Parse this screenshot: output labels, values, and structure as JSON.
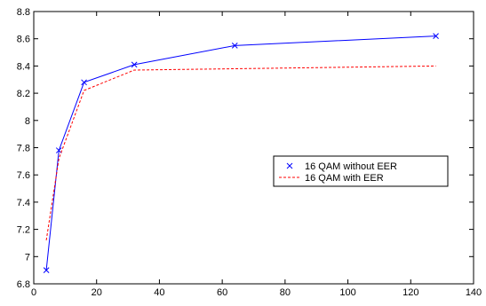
{
  "chart_data": {
    "type": "line",
    "title": "",
    "xlabel": "",
    "ylabel": "",
    "xlim": [
      0,
      140
    ],
    "ylim": [
      6.8,
      8.8
    ],
    "x_ticks": [
      "0",
      "20",
      "40",
      "60",
      "80",
      "100",
      "120",
      "140"
    ],
    "y_ticks": [
      "6.8",
      "7",
      "7.2",
      "7.4",
      "7.6",
      "7.8",
      "8",
      "8.2",
      "8.4",
      "8.6",
      "8.8"
    ],
    "grid": false,
    "legend_position": "center-right",
    "series": [
      {
        "name": "16 QAM without EER",
        "color": "#0000ff",
        "line_style": "solid",
        "marker": "x",
        "x": [
          4,
          8,
          16,
          32,
          64,
          128
        ],
        "y": [
          6.9,
          7.78,
          8.28,
          8.41,
          8.55,
          8.62
        ]
      },
      {
        "name": "16 QAM with EER",
        "color": "#ff0000",
        "line_style": "dashed",
        "marker": "none",
        "x": [
          4,
          8,
          16,
          32,
          64,
          128
        ],
        "y": [
          7.12,
          7.72,
          8.22,
          8.37,
          8.38,
          8.4
        ]
      }
    ]
  }
}
